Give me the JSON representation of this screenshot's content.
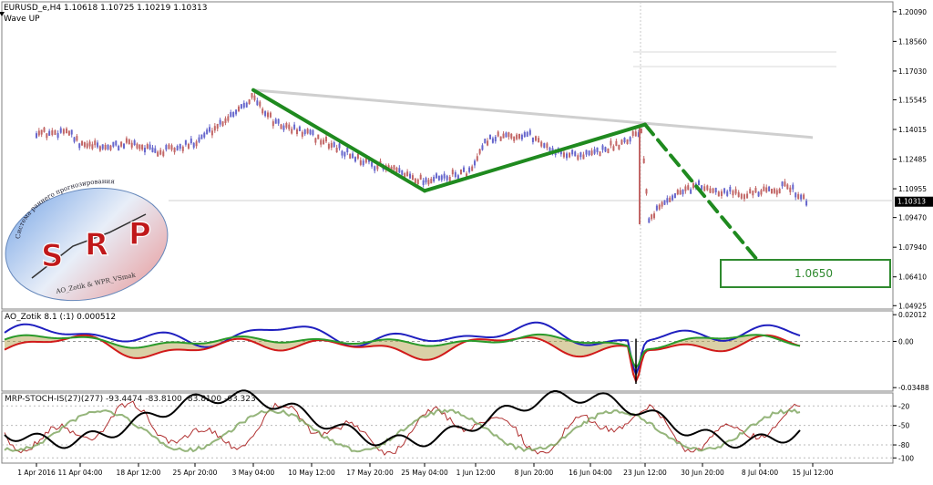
{
  "header": {
    "symbol_line": "EURUSD_e,H4  1.10618 1.10725 1.10219 1.10313",
    "indicator_name": "Wave UP"
  },
  "panes": {
    "ao_label": "AO_Zotik 8.1 (:1) 0.000512",
    "mrp_label": "MRP-STOCH-IS(27)(277) -93.4474 -83.8100 -83.8100 -63.323"
  },
  "logo": {
    "main_text": "SRP",
    "arc_text": "Система раннего прогнозирования",
    "credit_text": "AO_Zotik & WPR_VSmak"
  },
  "colors": {
    "bull_candle": "#6666cc",
    "bear_candle": "#c26666",
    "wave_line": "#1f8a1f",
    "trend_line": "#cfcfcf",
    "target_box": "#2f8a2f",
    "ao_blue": "#1f1fbf",
    "ao_red": "#d11a1a",
    "ao_green": "#2a9a2a",
    "ao_fill": "#b5a24e",
    "stoch_black": "#000000",
    "stoch_red": "#b03030"
  },
  "chart_data": {
    "type": "line",
    "symbol": "EURUSD_e",
    "timeframe": "H4",
    "ohlc_last": {
      "open": 1.10618,
      "high": 1.10725,
      "low": 1.10219,
      "close": 1.10313
    },
    "price_axis_ticks": [
      "1.20090",
      "1.18560",
      "1.17030",
      "1.15545",
      "1.14015",
      "1.12485",
      "1.10955",
      "1.09470",
      "1.07940",
      "1.06410",
      "1.04925"
    ],
    "current_price_label": "1.10313",
    "ylim": [
      1.0475,
      1.206
    ],
    "x_ticks": [
      "1 Apr 2016",
      "11 Apr 04:00",
      "18 Apr 12:00",
      "25 Apr 20:00",
      "3 May 04:00",
      "10 May 12:00",
      "17 May 20:00",
      "25 May 04:00",
      "1 Jun 12:00",
      "8 Jun 20:00",
      "16 Jun 04:00",
      "23 Jun 12:00",
      "30 Jun 20:00",
      "8 Jul 04:00",
      "15 Jul 12:00"
    ],
    "price_series": {
      "name": "EURUSD_e,H4",
      "x": [
        "1 Apr 2016",
        "4 Apr",
        "8 Apr",
        "11 Apr",
        "14 Apr",
        "18 Apr",
        "21 Apr",
        "25 Apr",
        "28 Apr",
        "3 May",
        "6 May",
        "10 May",
        "13 May",
        "17 May",
        "20 May",
        "25 May",
        "28 May",
        "1 Jun",
        "3 Jun",
        "8 Jun",
        "12 Jun",
        "16 Jun",
        "20 Jun",
        "23 Jun",
        "24 Jun",
        "27 Jun",
        "30 Jun",
        "4 Jul",
        "8 Jul",
        "12 Jul",
        "15 Jul"
      ],
      "y": [
        1.139,
        1.138,
        1.14,
        1.132,
        1.131,
        1.133,
        1.128,
        1.132,
        1.14,
        1.157,
        1.143,
        1.138,
        1.132,
        1.124,
        1.12,
        1.114,
        1.115,
        1.119,
        1.135,
        1.138,
        1.128,
        1.127,
        1.133,
        1.14,
        1.095,
        1.106,
        1.111,
        1.108,
        1.107,
        1.111,
        1.103
      ]
    },
    "wave_points": {
      "name": "Wave UP",
      "x": [
        "3 May 04:00",
        "25 May 04:00",
        "23 Jun 12:00",
        "15 Jul 12:00"
      ],
      "y": [
        1.1605,
        1.1085,
        1.1427,
        1.065
      ]
    },
    "trend_line": {
      "x": [
        "3 May 04:00",
        "15 Jul 12:00"
      ],
      "y": [
        1.1605,
        1.136
      ]
    },
    "target_label": "1.0650",
    "ao_panel": {
      "axis_labels": [
        "0.02012",
        "0.00",
        "-0.03488"
      ],
      "ylim": [
        -0.0375,
        0.023
      ]
    },
    "stoch_panel": {
      "axis_labels": [
        "-20",
        "-50",
        "-80",
        "-100"
      ],
      "ylim": [
        -108,
        0
      ]
    }
  }
}
